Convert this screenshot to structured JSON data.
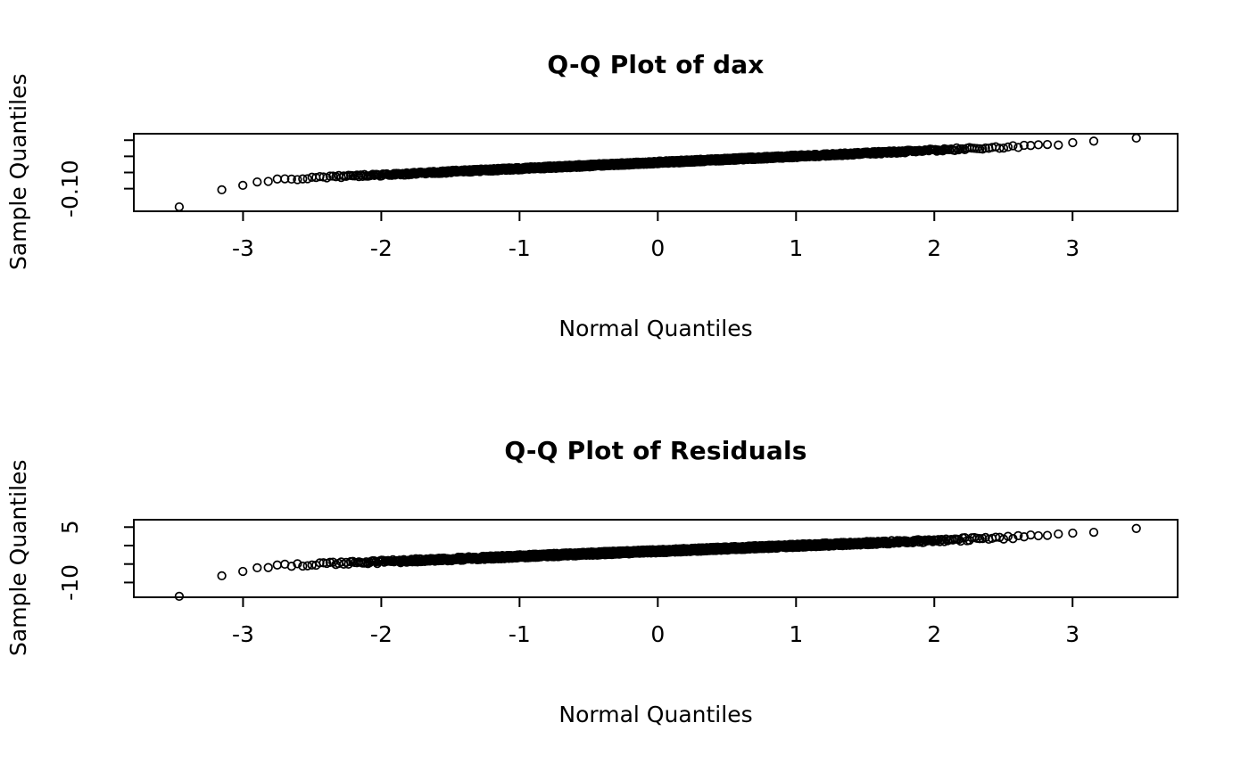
{
  "page": {
    "background_color": "#ffffff",
    "text_color": "#000000"
  },
  "chart_data": [
    {
      "type": "scatter",
      "variant": "qq-normal-plot",
      "title": "Q-Q Plot of dax",
      "xlabel": "Normal Quantiles",
      "ylabel": "Sample Quantiles",
      "xlim": [
        -3.79,
        3.76
      ],
      "ylim": [
        -0.17,
        0.07
      ],
      "xticks": [
        -3,
        -2,
        -1,
        0,
        1,
        2,
        3
      ],
      "xtick_labels": [
        "-3",
        "-2",
        "-1",
        "0",
        "1",
        "2",
        "3"
      ],
      "yticks": [
        0.05,
        0,
        -0.05,
        -0.1
      ],
      "ytick_labels": [
        "",
        "",
        "",
        "-0.10"
      ],
      "grid": false,
      "legend": null,
      "marker": {
        "shape": "open-circle",
        "color": "#000000"
      },
      "seed": 17,
      "points": {
        "n": 1860,
        "x_rule": "theoretical normal quantiles q((i-0.5)/n)",
        "line": {
          "slope": 0.019,
          "intercept": -0.019
        },
        "noise_halfwidth": 0.004,
        "left_tail": {
          "threshold": -2.5,
          "coef": 0.08,
          "power": 3
        },
        "right_tail": {
          "threshold": 2.5,
          "coef": 0.012,
          "power": 2
        },
        "x_range": [
          -3.46,
          3.46
        ],
        "min_point": [
          -3.46,
          -0.155
        ],
        "max_point": [
          3.46,
          0.058
        ]
      }
    },
    {
      "type": "scatter",
      "variant": "qq-normal-plot",
      "title": "Q-Q Plot of Residuals",
      "xlabel": "Normal Quantiles",
      "ylabel": "Sample Quantiles",
      "xlim": [
        -3.79,
        3.76
      ],
      "ylim": [
        -14,
        7
      ],
      "xticks": [
        -3,
        -2,
        -1,
        0,
        1,
        2,
        3
      ],
      "xtick_labels": [
        "-3",
        "-2",
        "-1",
        "0",
        "1",
        "2",
        "3"
      ],
      "yticks": [
        5,
        0,
        -5,
        -10
      ],
      "ytick_labels": [
        "5",
        "",
        "",
        "-10"
      ],
      "grid": false,
      "legend": null,
      "marker": {
        "shape": "open-circle",
        "color": "#000000"
      },
      "seed": 91,
      "points": {
        "n": 1860,
        "x_rule": "theoretical normal quantiles q((i-0.5)/n)",
        "line": {
          "slope": 1.44,
          "intercept": -1.5
        },
        "noise_halfwidth": 0.45,
        "left_tail": {
          "threshold": -2.5,
          "coef": 7.8,
          "power": 3
        },
        "right_tail": {
          "threshold": 2.5,
          "coef": 1.2,
          "power": 2
        },
        "x_range": [
          -3.46,
          3.46
        ],
        "min_point": [
          -3.46,
          -13.4
        ],
        "max_point": [
          3.46,
          4.6
        ]
      }
    }
  ]
}
